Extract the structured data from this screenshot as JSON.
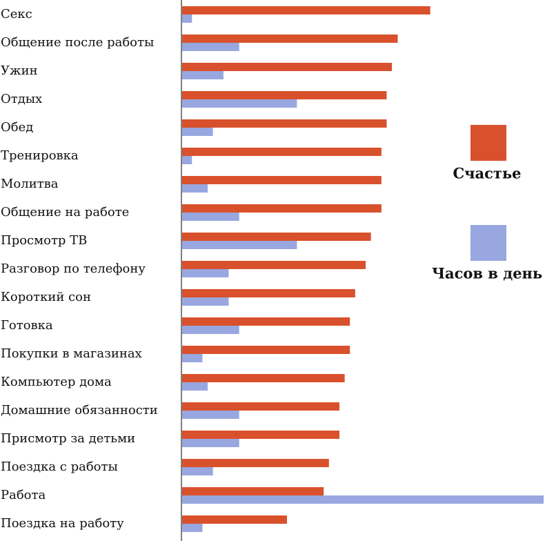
{
  "chart_data": {
    "type": "bar",
    "orientation": "horizontal",
    "categories": [
      "Секс",
      "Общение после работы",
      "Ужин",
      "Отдых",
      "Обед",
      "Тренировка",
      "Молитва",
      "Общение на работе",
      "Просмотр ТВ",
      "Разговор по телефону",
      "Короткий сон",
      "Готовка",
      "Покупки в магазинах",
      "Компьютер дома",
      "Домашние обязанности",
      "Присмотр за детьми",
      "Поездка с работы",
      "Работа",
      "Поездка на работу"
    ],
    "series": [
      {
        "name": "Счастье",
        "color": "#d9512c",
        "values": [
          4.74,
          4.12,
          4.01,
          3.91,
          3.91,
          3.81,
          3.81,
          3.81,
          3.61,
          3.51,
          3.31,
          3.21,
          3.21,
          3.11,
          3.01,
          3.01,
          2.81,
          2.71,
          2.01
        ]
      },
      {
        "name": "Часов в день",
        "color": "#98a7df",
        "values": [
          0.2,
          1.1,
          0.8,
          2.2,
          0.6,
          0.2,
          0.5,
          1.1,
          2.2,
          0.9,
          0.9,
          1.1,
          0.4,
          0.5,
          1.1,
          1.1,
          0.6,
          6.9,
          0.4
        ]
      }
    ],
    "legend": "right"
  }
}
